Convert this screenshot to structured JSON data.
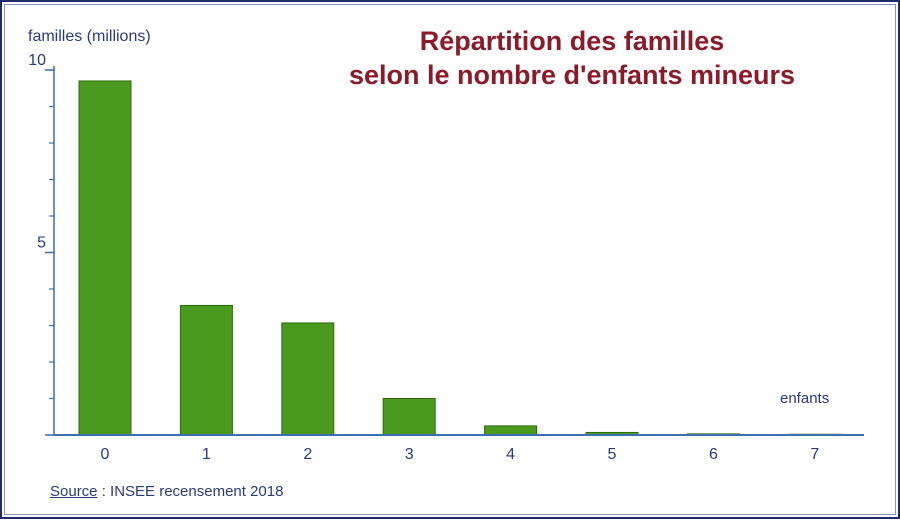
{
  "chart_data": {
    "type": "bar",
    "title_lines": [
      "Répartition des familles",
      "selon le nombre d'enfants mineurs"
    ],
    "ylabel": "familles (millions)",
    "xlabel": "enfants",
    "categories": [
      "0",
      "1",
      "2",
      "3",
      "4",
      "5",
      "6",
      "7"
    ],
    "values": [
      9.7,
      3.55,
      3.07,
      1.0,
      0.25,
      0.07,
      0.03,
      0.02
    ],
    "ylim": [
      0,
      10
    ],
    "yticks": [
      0,
      5,
      10
    ],
    "yticklabels": [
      "",
      "5",
      "10"
    ],
    "grid": false,
    "legend": "none"
  },
  "source": {
    "label": "Source",
    "text": " : INSEE  recensement 2018"
  },
  "colors": {
    "bar_fill": "#4a9a1e",
    "bar_stroke": "#2d6a10",
    "axis": "#3a6fb0",
    "title": "#8b1a2b",
    "text": "#2a3a7a"
  }
}
